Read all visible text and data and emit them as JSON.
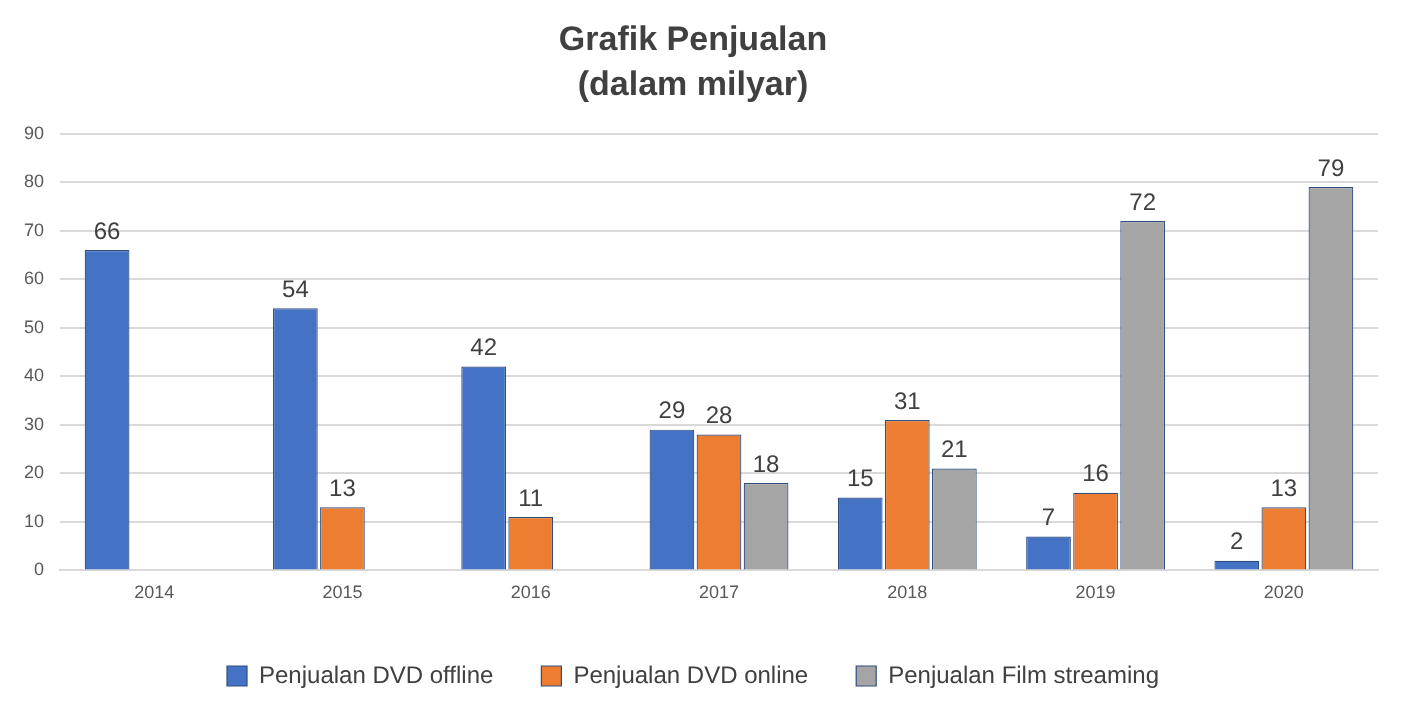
{
  "chart_data": {
    "type": "bar",
    "title": "Grafik Penjualan",
    "subtitle": "(dalam milyar)",
    "categories": [
      "2014",
      "2015",
      "2016",
      "2017",
      "2018",
      "2019",
      "2020"
    ],
    "series": [
      {
        "name": "Penjualan DVD offline",
        "color": "#4472c4",
        "values": [
          66,
          54,
          42,
          29,
          15,
          7,
          2
        ]
      },
      {
        "name": "Penjualan DVD online",
        "color": "#ed7d31",
        "values": [
          null,
          13,
          11,
          28,
          31,
          16,
          13
        ]
      },
      {
        "name": "Penjualan Film streaming",
        "color": "#a5a5a5",
        "values": [
          null,
          null,
          null,
          18,
          21,
          72,
          79
        ]
      }
    ],
    "ylim": [
      0,
      90
    ],
    "yticks": [
      0,
      10,
      20,
      30,
      40,
      50,
      60,
      70,
      80,
      90
    ],
    "grid": "y",
    "legend": "bottom",
    "data_labels": true
  }
}
